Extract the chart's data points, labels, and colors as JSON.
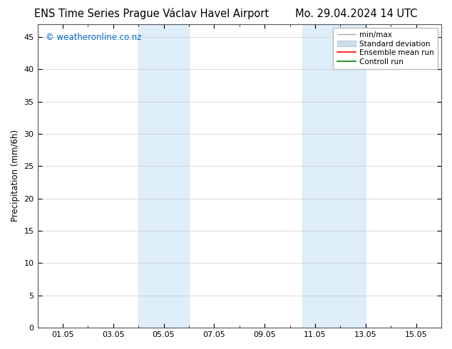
{
  "title_left": "ENS Time Series Prague Václav Havel Airport",
  "title_right": "Mo. 29.04.2024 14 UTC",
  "ylabel": "Precipitation (mm/6h)",
  "watermark": "© weatheronline.co.nz",
  "xlim_start": 0.0,
  "xlim_end": 16.0,
  "ylim": [
    0,
    47
  ],
  "yticks": [
    0,
    5,
    10,
    15,
    20,
    25,
    30,
    35,
    40,
    45
  ],
  "xtick_labels": [
    "01.05",
    "03.05",
    "05.05",
    "07.05",
    "09.05",
    "11.05",
    "13.05",
    "15.05"
  ],
  "xtick_positions": [
    1,
    3,
    5,
    7,
    9,
    11,
    13,
    15
  ],
  "shaded_regions": [
    {
      "xmin": 4.0,
      "xmax": 6.0,
      "color": "#ddeef8"
    },
    {
      "xmin": 10.5,
      "xmax": 11.5,
      "color": "#ddeef8"
    },
    {
      "xmin": 11.5,
      "xmax": 13.0,
      "color": "#ddeef8"
    }
  ],
  "legend_labels": [
    "min/max",
    "Standard deviation",
    "Ensemble mean run",
    "Controll run"
  ],
  "legend_colors": [
    "#999999",
    "#ccdde8",
    "red",
    "green"
  ],
  "title_fontsize": 10.5,
  "watermark_color": "#0066cc",
  "watermark_fontsize": 8.5,
  "background_color": "#ffffff",
  "plot_bg_color": "#ffffff",
  "grid_color": "#cccccc",
  "tick_label_fontsize": 8,
  "ylabel_fontsize": 8.5,
  "legend_fontsize": 7.5
}
